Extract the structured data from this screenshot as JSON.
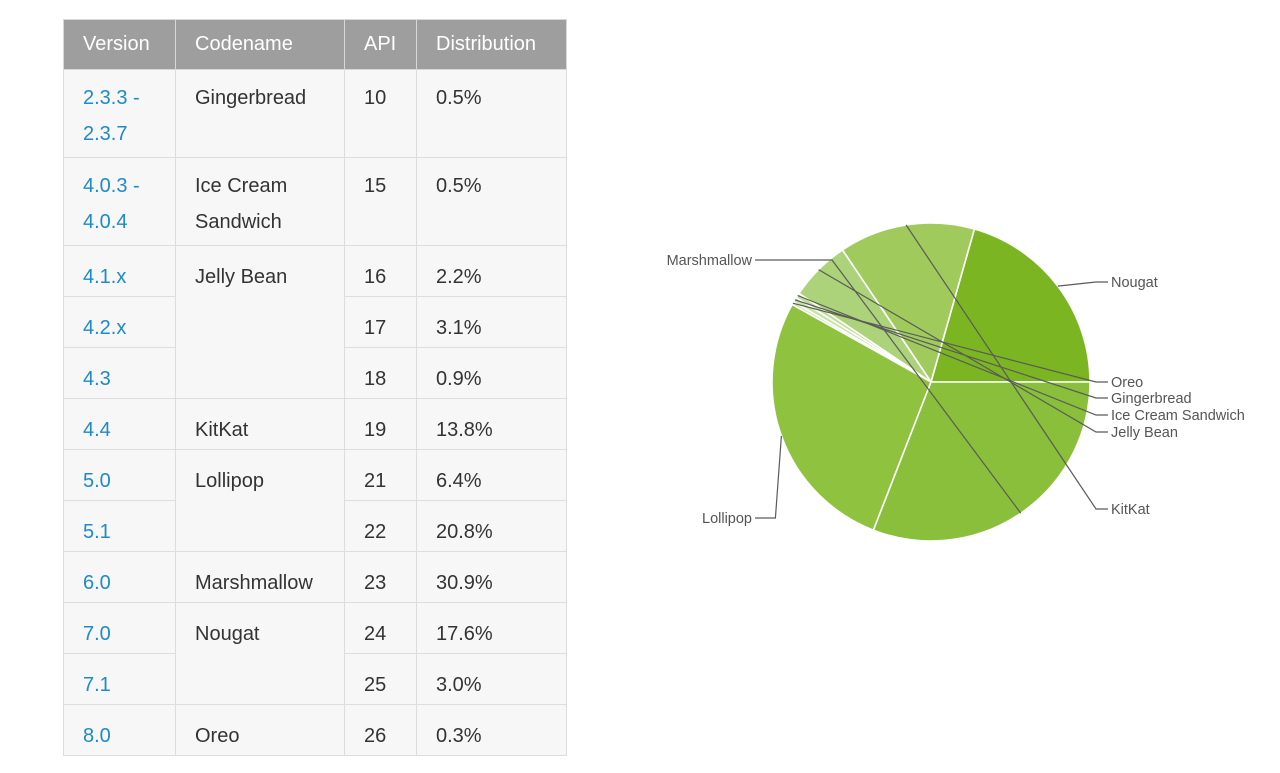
{
  "table": {
    "headers": [
      "Version",
      "Codename",
      "API",
      "Distribution"
    ],
    "rows": [
      {
        "version": "2.3.3 -",
        "version_line2": "2.3.7",
        "codename": "Gingerbread",
        "api": "10",
        "distribution": "0.5%"
      },
      {
        "version": "4.0.3 -",
        "version_line2": "4.0.4",
        "codename": "Ice Cream",
        "codename_line2": "Sandwich",
        "api": "15",
        "distribution": "0.5%"
      },
      {
        "version": "4.1.x",
        "codename": "Jelly Bean",
        "api": "16",
        "distribution": "2.2%"
      },
      {
        "version": "4.2.x",
        "api": "17",
        "distribution": "3.1%"
      },
      {
        "version": "4.3",
        "api": "18",
        "distribution": "0.9%"
      },
      {
        "version": "4.4",
        "codename": "KitKat",
        "api": "19",
        "distribution": "13.8%"
      },
      {
        "version": "5.0",
        "codename": "Lollipop",
        "api": "21",
        "distribution": "6.4%"
      },
      {
        "version": "5.1",
        "api": "22",
        "distribution": "20.8%"
      },
      {
        "version": "6.0",
        "codename": "Marshmallow",
        "api": "23",
        "distribution": "30.9%"
      },
      {
        "version": "7.0",
        "codename": "Nougat",
        "api": "24",
        "distribution": "17.6%"
      },
      {
        "version": "7.1",
        "api": "25",
        "distribution": "3.0%"
      },
      {
        "version": "8.0",
        "codename": "Oreo",
        "api": "26",
        "distribution": "0.3%"
      }
    ]
  },
  "chart_data": {
    "type": "pie",
    "slices": [
      {
        "label": "Nougat",
        "value": 20.6,
        "color": "#7cb522"
      },
      {
        "label": "KitKat",
        "value": 13.8,
        "color": "#a0cb5c"
      },
      {
        "label": "Jelly Bean",
        "value": 6.2,
        "color": "#acd37a"
      },
      {
        "label": "Ice Cream Sandwich",
        "value": 0.5,
        "color": "#bedd96"
      },
      {
        "label": "Gingerbread",
        "value": 0.5,
        "color": "#c7e3a4"
      },
      {
        "label": "Oreo",
        "value": 0.3,
        "color": "#cfe7b1"
      },
      {
        "label": "Lollipop",
        "value": 27.2,
        "color": "#8fc23f"
      },
      {
        "label": "Marshmallow",
        "value": 30.9,
        "color": "#89bf3a"
      }
    ],
    "colors": {
      "header_bg": "#9e9e9e",
      "link": "#1d8ac9"
    }
  }
}
